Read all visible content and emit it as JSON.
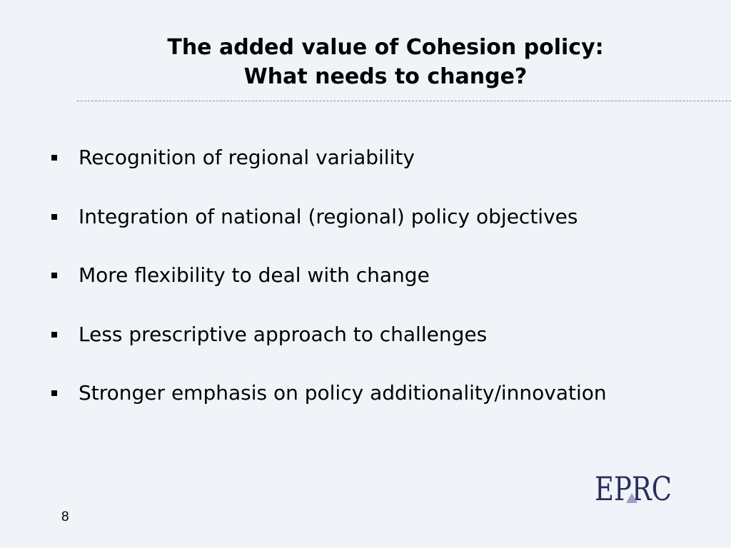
{
  "header": {
    "title_lines": [
      "The added value of Cohesion policy:",
      "What needs to change?"
    ]
  },
  "bullets": [
    "Recognition of regional variability",
    "Integration of national (regional) policy objectives",
    "More flexibility to deal with change",
    "Less prescriptive approach to challenges",
    "Stronger emphasis on policy additionality/innovation"
  ],
  "footer": {
    "page_number": "8",
    "logo": "EPRC"
  }
}
